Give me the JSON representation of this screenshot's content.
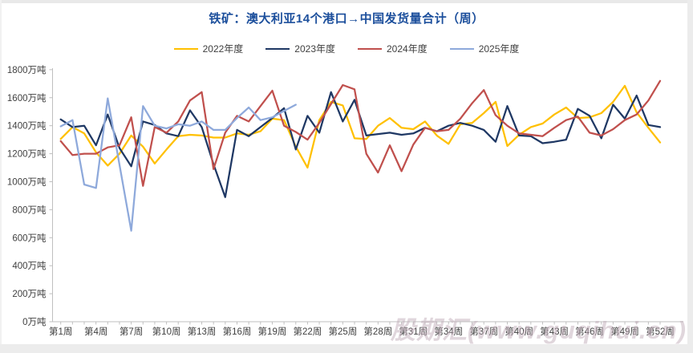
{
  "title": "铁矿：澳大利亚14个港口→中国发货量合计（周）",
  "watermark": "股期汇(www.guqihui.cn)",
  "colors": {
    "title": "#1c4f9c",
    "axis": "#bfbfbf",
    "tick_label": "#3f3f3f",
    "watermark": "#c3aebb",
    "background": "#ffffff",
    "frame": "#e9e9e9"
  },
  "chart_data": {
    "type": "line",
    "title": "铁矿：澳大利亚14个港口→中国发货量合计（周）",
    "xlabel": "",
    "ylabel": "万吨",
    "ylim": [
      0,
      1800
    ],
    "y_tick_step": 200,
    "y_tick_labels": [
      "1800万吨",
      "1600万吨",
      "1400万吨",
      "1200万吨",
      "1000万吨",
      "800万吨",
      "600万吨",
      "400万吨",
      "200万吨",
      "0万吨"
    ],
    "weeks": 52,
    "x_tick_labels": [
      "第1周",
      "第4周",
      "第7周",
      "第10周",
      "第13周",
      "第16周",
      "第19周",
      "第22周",
      "第25周",
      "第28周",
      "第31周",
      "第34周",
      "第37周",
      "第40周",
      "第43周",
      "第46周",
      "第49周",
      "第52周"
    ],
    "grid": false,
    "legend_position": "top",
    "series": [
      {
        "name": "2022年度",
        "color": "#FFC000",
        "values": [
          1305,
          1390,
          1345,
          1210,
          1115,
          1200,
          1330,
          1250,
          1130,
          1230,
          1325,
          1335,
          1330,
          1315,
          1315,
          1345,
          1335,
          1360,
          1450,
          1440,
          1250,
          1100,
          1440,
          1570,
          1545,
          1310,
          1305,
          1400,
          1455,
          1385,
          1375,
          1430,
          1330,
          1270,
          1410,
          1420,
          1490,
          1570,
          1255,
          1335,
          1390,
          1415,
          1480,
          1530,
          1455,
          1460,
          1490,
          1570,
          1685,
          1495,
          1385,
          1280
        ]
      },
      {
        "name": "2023年度",
        "color": "#1F3864",
        "values": [
          1445,
          1390,
          1400,
          1260,
          1480,
          1240,
          1110,
          1430,
          1405,
          1345,
          1325,
          1510,
          1390,
          1125,
          890,
          1370,
          1325,
          1390,
          1455,
          1525,
          1230,
          1470,
          1350,
          1640,
          1430,
          1585,
          1330,
          1340,
          1350,
          1335,
          1345,
          1385,
          1360,
          1400,
          1420,
          1400,
          1370,
          1285,
          1540,
          1330,
          1325,
          1275,
          1285,
          1300,
          1520,
          1470,
          1310,
          1550,
          1450,
          1615,
          1405,
          1390
        ]
      },
      {
        "name": "2024年度",
        "color": "#C0504D",
        "values": [
          1290,
          1190,
          1200,
          1200,
          1245,
          1260,
          1460,
          970,
          1390,
          1350,
          1430,
          1580,
          1640,
          1090,
          1350,
          1470,
          1430,
          1540,
          1650,
          1400,
          1355,
          1300,
          1420,
          1555,
          1690,
          1660,
          1200,
          1065,
          1260,
          1075,
          1265,
          1385,
          1360,
          1370,
          1450,
          1560,
          1655,
          1475,
          1400,
          1345,
          1335,
          1325,
          1385,
          1440,
          1465,
          1350,
          1330,
          1375,
          1440,
          1480,
          1580,
          1720
        ]
      },
      {
        "name": "2025年度",
        "color": "#8EA9DB",
        "values": [
          1395,
          1440,
          980,
          955,
          1595,
          1120,
          650,
          1540,
          1400,
          1380,
          1410,
          1400,
          1430,
          1370,
          1370,
          1455,
          1530,
          1440,
          1460,
          1505,
          1550
        ]
      }
    ]
  }
}
